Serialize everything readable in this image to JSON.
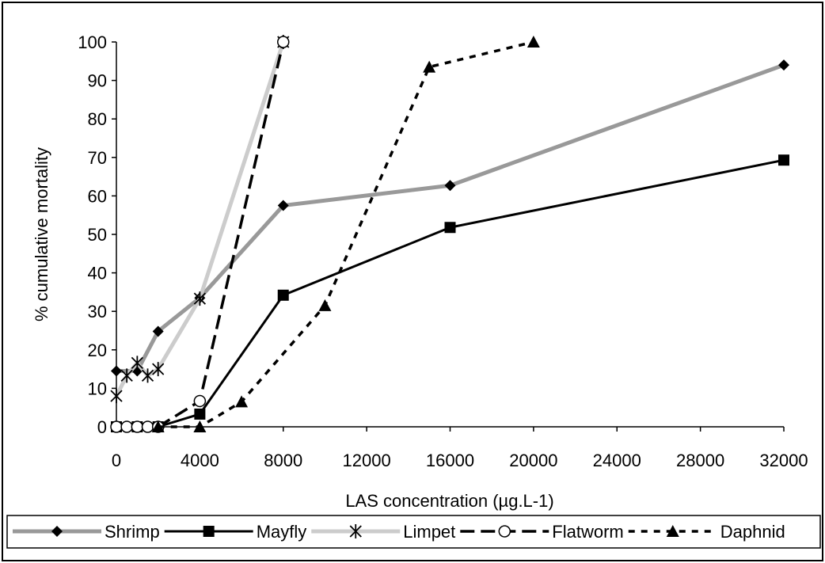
{
  "chart_data": {
    "type": "line",
    "title": "",
    "xlabel": "LAS concentration (µg.L-1)",
    "ylabel": "% cumulative mortality",
    "xlim": [
      0,
      32000
    ],
    "ylim": [
      0,
      100
    ],
    "xticks": [
      0,
      4000,
      8000,
      12000,
      16000,
      20000,
      24000,
      28000,
      32000
    ],
    "yticks": [
      0,
      10,
      20,
      30,
      40,
      50,
      60,
      70,
      80,
      90,
      100
    ],
    "grid": false,
    "legend_position": "bottom",
    "series": [
      {
        "name": "Shrimp",
        "color": "#999999",
        "style": "thick-solid",
        "marker": "diamond",
        "points": [
          [
            0,
            14.5
          ],
          [
            1000,
            14.5
          ],
          [
            2000,
            24.8
          ],
          [
            4000,
            33.5
          ],
          [
            8000,
            57.5
          ],
          [
            16000,
            62.7
          ],
          [
            32000,
            94
          ]
        ]
      },
      {
        "name": "Mayfly",
        "color": "#000000",
        "style": "solid",
        "marker": "square",
        "points": [
          [
            0,
            0
          ],
          [
            1000,
            0
          ],
          [
            2000,
            0
          ],
          [
            4000,
            3.3
          ],
          [
            8000,
            34.2
          ],
          [
            16000,
            51.8
          ],
          [
            32000,
            69.3
          ]
        ]
      },
      {
        "name": "Limpet",
        "color": "#cccccc",
        "style": "thick-solid",
        "marker": "asterisk",
        "points": [
          [
            0,
            8
          ],
          [
            500,
            13.3
          ],
          [
            1000,
            16.6
          ],
          [
            1500,
            13.3
          ],
          [
            2000,
            15
          ],
          [
            4000,
            33.3
          ],
          [
            8000,
            100
          ]
        ]
      },
      {
        "name": "Flatworm",
        "color": "#000000",
        "style": "long-dash",
        "marker": "circle",
        "points": [
          [
            0,
            0
          ],
          [
            500,
            0
          ],
          [
            1000,
            0
          ],
          [
            1500,
            0
          ],
          [
            2000,
            0
          ],
          [
            4000,
            6.7
          ],
          [
            8000,
            100
          ]
        ]
      },
      {
        "name": "Daphnid",
        "color": "#000000",
        "style": "short-dash",
        "marker": "triangle",
        "points": [
          [
            2000,
            0
          ],
          [
            4000,
            0
          ],
          [
            6000,
            6.5
          ],
          [
            10000,
            31.5
          ],
          [
            15000,
            93.5
          ],
          [
            20000,
            100
          ]
        ]
      }
    ]
  }
}
